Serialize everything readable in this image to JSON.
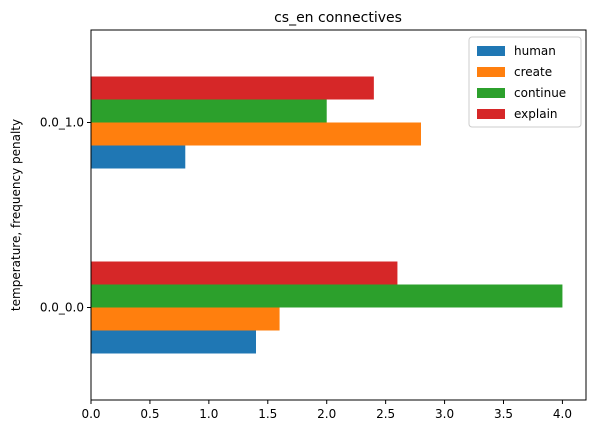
{
  "chart_data": {
    "type": "bar",
    "orientation": "horizontal",
    "title": "cs_en connectives",
    "xlabel": "",
    "ylabel": "temperature, frequency penalty",
    "categories": [
      "0.0_0.0",
      "0.0_1.0"
    ],
    "series": [
      {
        "name": "human",
        "color": "#1f77b4",
        "values": [
          1.4,
          0.8
        ]
      },
      {
        "name": "create",
        "color": "#ff7f0e",
        "values": [
          1.6,
          2.8
        ]
      },
      {
        "name": "continue",
        "color": "#2ca02c",
        "values": [
          4.0,
          2.0
        ]
      },
      {
        "name": "explain",
        "color": "#d62728",
        "values": [
          2.6,
          2.4
        ]
      }
    ],
    "xlim": [
      0,
      4.2
    ],
    "xticks": [
      "0.0",
      "0.5",
      "1.0",
      "1.5",
      "2.0",
      "2.5",
      "3.0",
      "3.5",
      "4.0"
    ],
    "xtick_values": [
      0,
      0.5,
      1.0,
      1.5,
      2.0,
      2.5,
      3.0,
      3.5,
      4.0
    ],
    "grid": false,
    "legend_position": "top-right"
  }
}
